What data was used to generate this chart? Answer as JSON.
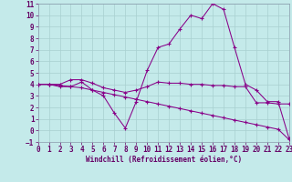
{
  "xlabel": "Windchill (Refroidissement éolien,°C)",
  "bg_color": "#c4eaea",
  "grid_color": "#a8d0d0",
  "line_color": "#880088",
  "xlim": [
    0,
    23
  ],
  "ylim": [
    -1,
    11
  ],
  "xticks": [
    0,
    1,
    2,
    3,
    4,
    5,
    6,
    7,
    8,
    9,
    10,
    11,
    12,
    13,
    14,
    15,
    16,
    17,
    18,
    19,
    20,
    21,
    22,
    23
  ],
  "yticks": [
    -1,
    0,
    1,
    2,
    3,
    4,
    5,
    6,
    7,
    8,
    9,
    10,
    11
  ],
  "line1_x": [
    0,
    1,
    2,
    3,
    4,
    5,
    6,
    7,
    8,
    9,
    10,
    11,
    12,
    13,
    14,
    15,
    16,
    17,
    18,
    19,
    20,
    21,
    22,
    23
  ],
  "line1_y": [
    4.0,
    4.0,
    4.0,
    4.4,
    4.4,
    4.1,
    3.7,
    3.5,
    3.3,
    3.5,
    3.8,
    4.2,
    4.1,
    4.1,
    4.0,
    4.0,
    3.9,
    3.9,
    3.8,
    3.8,
    2.4,
    2.4,
    2.3,
    2.3
  ],
  "line2_x": [
    0,
    1,
    2,
    3,
    4,
    5,
    6,
    7,
    8,
    9,
    10,
    11,
    12,
    13,
    14,
    15,
    16,
    17,
    18,
    19,
    20,
    21,
    22,
    23
  ],
  "line2_y": [
    4.0,
    4.0,
    3.8,
    3.8,
    4.2,
    3.5,
    3.0,
    1.5,
    0.2,
    2.5,
    5.2,
    7.2,
    7.5,
    8.8,
    10.0,
    9.7,
    11.0,
    10.5,
    7.2,
    4.0,
    3.5,
    2.5,
    2.5,
    -0.7
  ],
  "line3_x": [
    0,
    1,
    2,
    3,
    4,
    5,
    6,
    7,
    8,
    9,
    10,
    11,
    12,
    13,
    14,
    15,
    16,
    17,
    18,
    19,
    20,
    21,
    22,
    23
  ],
  "line3_y": [
    4.0,
    4.0,
    3.9,
    3.8,
    3.7,
    3.5,
    3.3,
    3.1,
    2.9,
    2.7,
    2.5,
    2.3,
    2.1,
    1.9,
    1.7,
    1.5,
    1.3,
    1.1,
    0.9,
    0.7,
    0.5,
    0.3,
    0.1,
    -0.8
  ],
  "tick_fontsize": 5.5,
  "xlabel_fontsize": 5.5,
  "label_color": "#660066"
}
